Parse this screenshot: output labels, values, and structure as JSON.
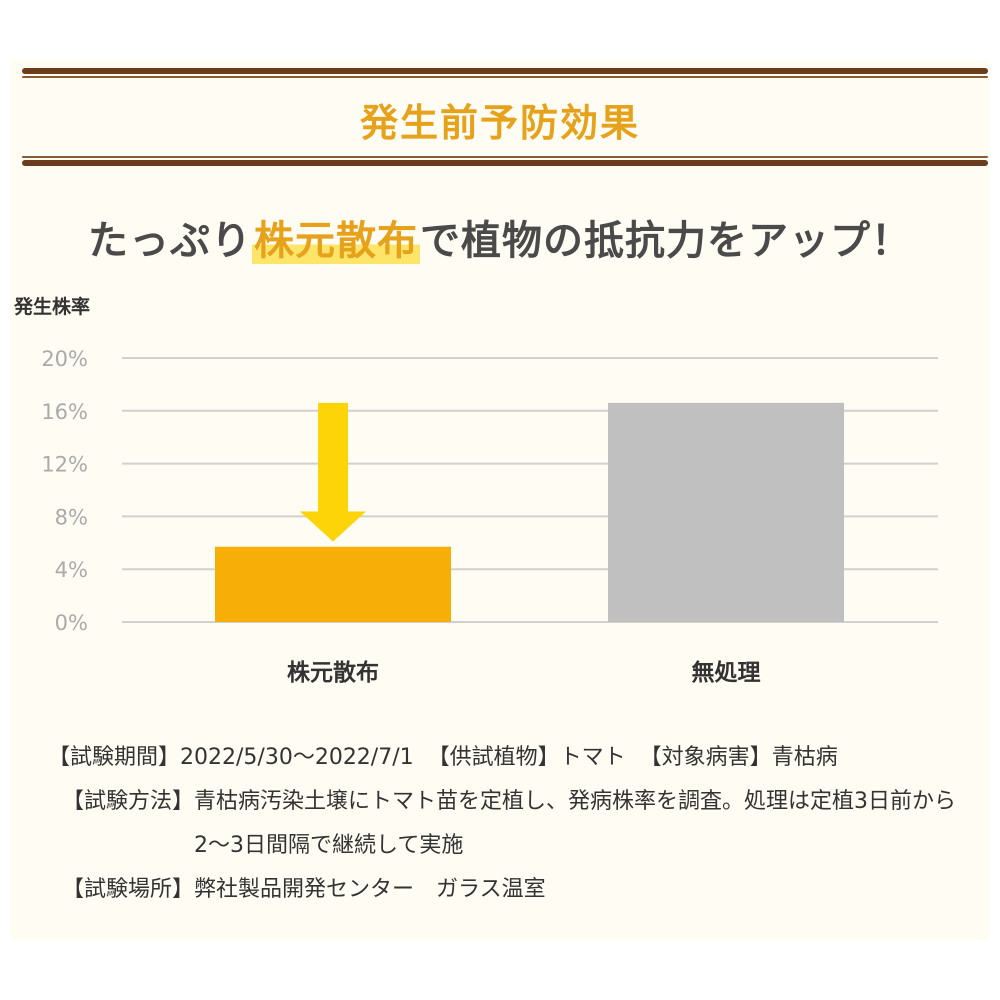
{
  "header": {
    "title": "発生前予防効果"
  },
  "tagline": {
    "prefix": "たっぷり",
    "highlight": "株元散布",
    "suffix": "で植物の抵抗力をアップ！"
  },
  "chart_data": {
    "type": "bar",
    "ylabel": "発生株率",
    "categories": [
      "株元散布",
      "無処理"
    ],
    "values": [
      5.7,
      16.6
    ],
    "colors": [
      "#f7ae07",
      "#c0c0c0"
    ],
    "ylim": [
      0,
      20
    ],
    "yticks": [
      "0%",
      "4%",
      "8%",
      "12%",
      "16%",
      "20%"
    ],
    "grid": true,
    "annotation": "down-arrow-over-first-bar",
    "arrow_color": "#fcd407"
  },
  "info": {
    "period_key": "【試験期間】",
    "period_value": "2022/5/30～2022/7/1",
    "plant_key": "【供試植物】",
    "plant_value": "トマト",
    "disease_key": "【対象病害】",
    "disease_value": "青枯病",
    "method_key": "【試験方法】",
    "method_value": "青枯病汚染土壌にトマト苗を定植し、発病株率を調査。処理は定植3日前から2～3日間隔で継続して実施",
    "place_key": "【試験場所】",
    "place_value": "弊社製品開発センター　ガラス温室"
  }
}
